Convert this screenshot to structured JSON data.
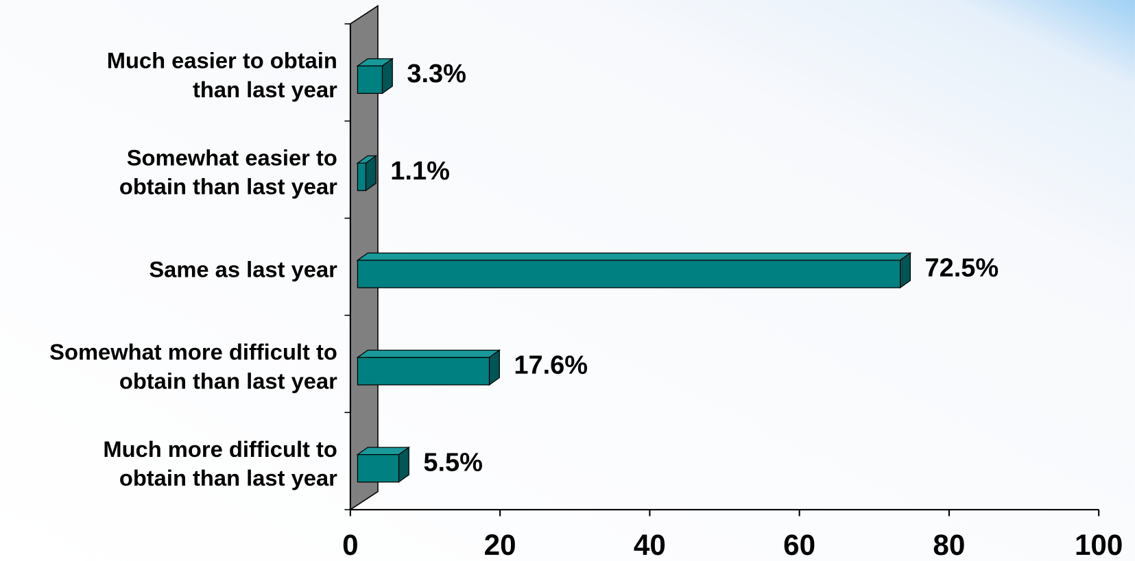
{
  "chart_data": {
    "type": "bar3d",
    "categories": [
      [
        "Much easier to obtain",
        "than last year"
      ],
      [
        "Somewhat easier to",
        "obtain than last year"
      ],
      [
        "Same as last year"
      ],
      [
        "Somewhat more difficult to",
        "obtain than last year"
      ],
      [
        "Much more difficult to",
        "obtain than last year"
      ]
    ],
    "values": [
      3.3,
      1.1,
      72.5,
      17.6,
      5.5
    ],
    "value_labels": [
      "3.3%",
      "1.1%",
      "72.5%",
      "17.6%",
      "5.5%"
    ],
    "color": "#008080",
    "xlim": [
      0,
      100
    ],
    "xticks": [
      0,
      20,
      40,
      60,
      80,
      100
    ]
  }
}
